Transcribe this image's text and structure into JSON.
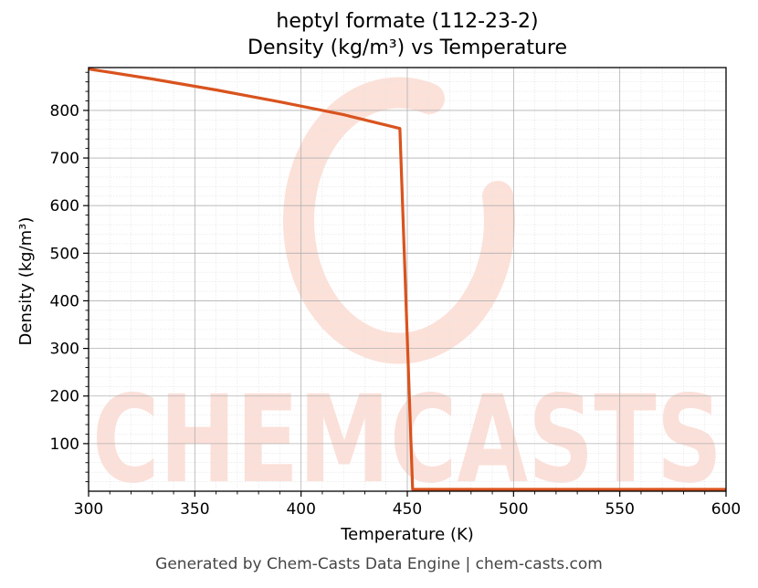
{
  "chart_data": {
    "type": "line",
    "title": "heptyl formate (112-23-2)",
    "subtitle": "Density (kg/m³) vs Temperature",
    "xlabel": "Temperature (K)",
    "ylabel": "Density (kg/m³)",
    "xlim": [
      300,
      600
    ],
    "ylim": [
      0,
      890
    ],
    "xticks": [
      300,
      350,
      400,
      450,
      500,
      550,
      600
    ],
    "yticks": [
      100,
      200,
      300,
      400,
      500,
      600,
      700,
      800
    ],
    "grid": true,
    "legend": "none",
    "series": [
      {
        "color": "#d9531e",
        "x": [
          300,
          330,
          360,
          390,
          420,
          446.5,
          452.5,
          500,
          550,
          600
        ],
        "y": [
          887,
          866,
          843,
          818,
          791,
          762,
          4,
          4,
          4,
          4
        ]
      }
    ]
  },
  "watermark": {
    "text": "CHEMCASTS",
    "color": "#fbd9d0"
  },
  "footer": "Generated by Chem-Casts Data Engine | chem-casts.com"
}
